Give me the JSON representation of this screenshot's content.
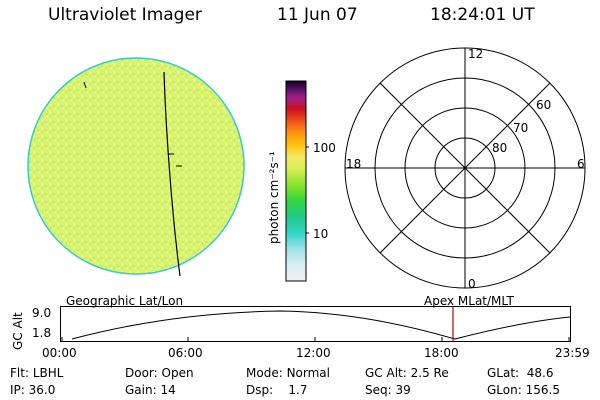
{
  "header": {
    "instrument": "Ultraviolet Imager",
    "date": "11 Jun 07",
    "time": "18:24:01 UT"
  },
  "colorbar": {
    "unit_label": "photon cm⁻²s⁻¹",
    "ticks": [
      "100",
      "10"
    ]
  },
  "polar_plot": {
    "mlt_labels": {
      "top": "12",
      "left": "18",
      "right": "6",
      "bottom": "0"
    },
    "lat_labels": [
      "60",
      "70",
      "80"
    ]
  },
  "orbit_panel": {
    "left_title": "Geographic Lat/Lon",
    "right_title": "Apex  MLat/MLT",
    "y_axis_label": "GC Alt",
    "y_ticks": [
      "9.0",
      "1.8"
    ],
    "x_ticks": [
      "00:00",
      "06:00",
      "12:00",
      "18:00",
      "23:59"
    ]
  },
  "footer": {
    "row1": [
      {
        "label": "Flt:",
        "value": "LBHL"
      },
      {
        "label": "Door:",
        "value": "Open"
      },
      {
        "label": "Mode:",
        "value": "Normal"
      },
      {
        "label": "GC Alt:",
        "value": "2.5 Re"
      },
      {
        "label": "GLat:",
        "value": "48.6"
      }
    ],
    "row2": [
      {
        "label": "IP:",
        "value": "36.0"
      },
      {
        "label": "Gain:",
        "value": "14"
      },
      {
        "label": "Dsp:",
        "value": "1.7"
      },
      {
        "label": "Seq:",
        "value": "39"
      },
      {
        "label": "GLon:",
        "value": "156.5"
      }
    ]
  },
  "colors": {
    "disk_fill": "#d6f06a",
    "disk_edge": "#33cccc",
    "marker": "#cc0000"
  }
}
